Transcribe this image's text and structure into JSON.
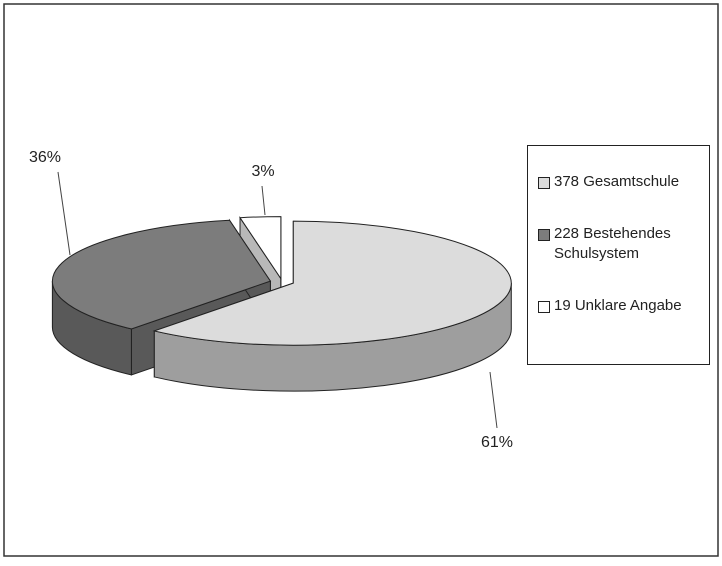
{
  "chart_data": {
    "type": "pie",
    "series": [
      {
        "name": "378 Gesamtschule",
        "color": "#dcdcdc"
      },
      {
        "name": "228 Bestehendes Schulsystem",
        "color": "#7c7c7c"
      },
      {
        "name": "19 Unklare Angabe",
        "color": "#ffffff"
      }
    ],
    "values": [
      61,
      36,
      3
    ],
    "value_labels": [
      "61%",
      "36%",
      "3%"
    ],
    "legend": "right"
  }
}
